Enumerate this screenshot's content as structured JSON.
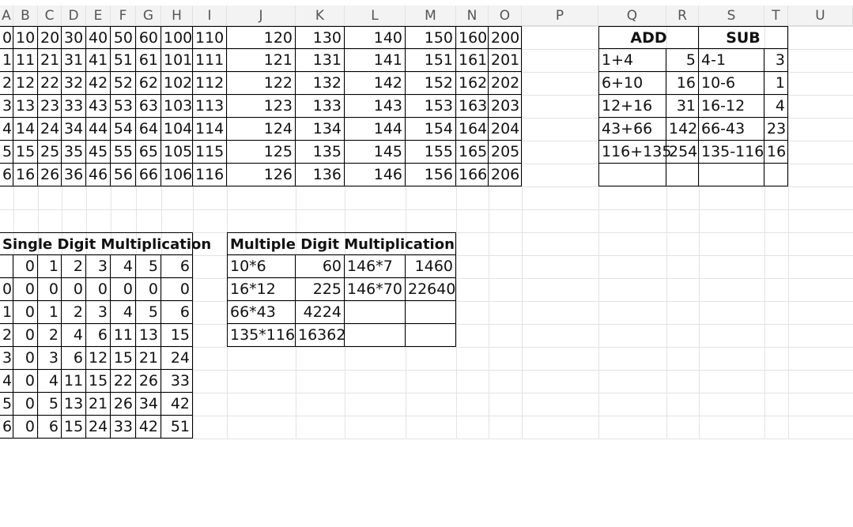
{
  "column_headers": [
    "A",
    "B",
    "C",
    "D",
    "E",
    "F",
    "G",
    "H",
    "I",
    "J",
    "K",
    "L",
    "M",
    "N",
    "O",
    "P",
    "Q",
    "R",
    "S",
    "T",
    "U"
  ],
  "number_table": {
    "rows": [
      [
        "0",
        "10",
        "20",
        "30",
        "40",
        "50",
        "60",
        "100",
        "110",
        "120",
        "130",
        "140",
        "150",
        "160",
        "200"
      ],
      [
        "1",
        "11",
        "21",
        "31",
        "41",
        "51",
        "61",
        "101",
        "111",
        "121",
        "131",
        "141",
        "151",
        "161",
        "201"
      ],
      [
        "2",
        "12",
        "22",
        "32",
        "42",
        "52",
        "62",
        "102",
        "112",
        "122",
        "132",
        "142",
        "152",
        "162",
        "202"
      ],
      [
        "3",
        "13",
        "23",
        "33",
        "43",
        "53",
        "63",
        "103",
        "113",
        "123",
        "133",
        "143",
        "153",
        "163",
        "203"
      ],
      [
        "4",
        "14",
        "24",
        "34",
        "44",
        "54",
        "64",
        "104",
        "114",
        "124",
        "134",
        "144",
        "154",
        "164",
        "204"
      ],
      [
        "5",
        "15",
        "25",
        "35",
        "45",
        "55",
        "65",
        "105",
        "115",
        "125",
        "135",
        "145",
        "155",
        "165",
        "205"
      ],
      [
        "6",
        "16",
        "26",
        "36",
        "46",
        "56",
        "66",
        "106",
        "116",
        "126",
        "136",
        "146",
        "156",
        "166",
        "206"
      ]
    ]
  },
  "add_sub": {
    "add_header": "ADD",
    "sub_header": "SUB",
    "rows": [
      [
        "1+4",
        "5",
        "4-1",
        "3"
      ],
      [
        "6+10",
        "16",
        "10-6",
        "1"
      ],
      [
        "12+16",
        "31",
        "16-12",
        "4"
      ],
      [
        "43+66",
        "142",
        "66-43",
        "23"
      ],
      [
        "116+135",
        "254",
        "135-116",
        "16"
      ],
      [
        "",
        "",
        "",
        ""
      ]
    ]
  },
  "single_digit": {
    "title": "Single Digit Multiplication",
    "header_row": [
      "",
      "0",
      "1",
      "2",
      "3",
      "4",
      "5",
      "6"
    ],
    "rows": [
      [
        "0",
        "0",
        "0",
        "0",
        "0",
        "0",
        "0",
        "0"
      ],
      [
        "1",
        "0",
        "1",
        "2",
        "3",
        "4",
        "5",
        "6"
      ],
      [
        "2",
        "0",
        "2",
        "4",
        "6",
        "11",
        "13",
        "15"
      ],
      [
        "3",
        "0",
        "3",
        "6",
        "12",
        "15",
        "21",
        "24"
      ],
      [
        "4",
        "0",
        "4",
        "11",
        "15",
        "22",
        "26",
        "33"
      ],
      [
        "5",
        "0",
        "5",
        "13",
        "21",
        "26",
        "34",
        "42"
      ],
      [
        "6",
        "0",
        "6",
        "15",
        "24",
        "33",
        "42",
        "51"
      ]
    ]
  },
  "multi_digit": {
    "title": "Multiple Digit Multiplication",
    "rows": [
      [
        "10*6",
        "60",
        "146*7",
        "1460"
      ],
      [
        "16*12",
        "225",
        "146*70",
        "22640"
      ],
      [
        "66*43",
        "4224",
        "",
        ""
      ],
      [
        "135*116",
        "16362",
        "",
        ""
      ]
    ]
  }
}
